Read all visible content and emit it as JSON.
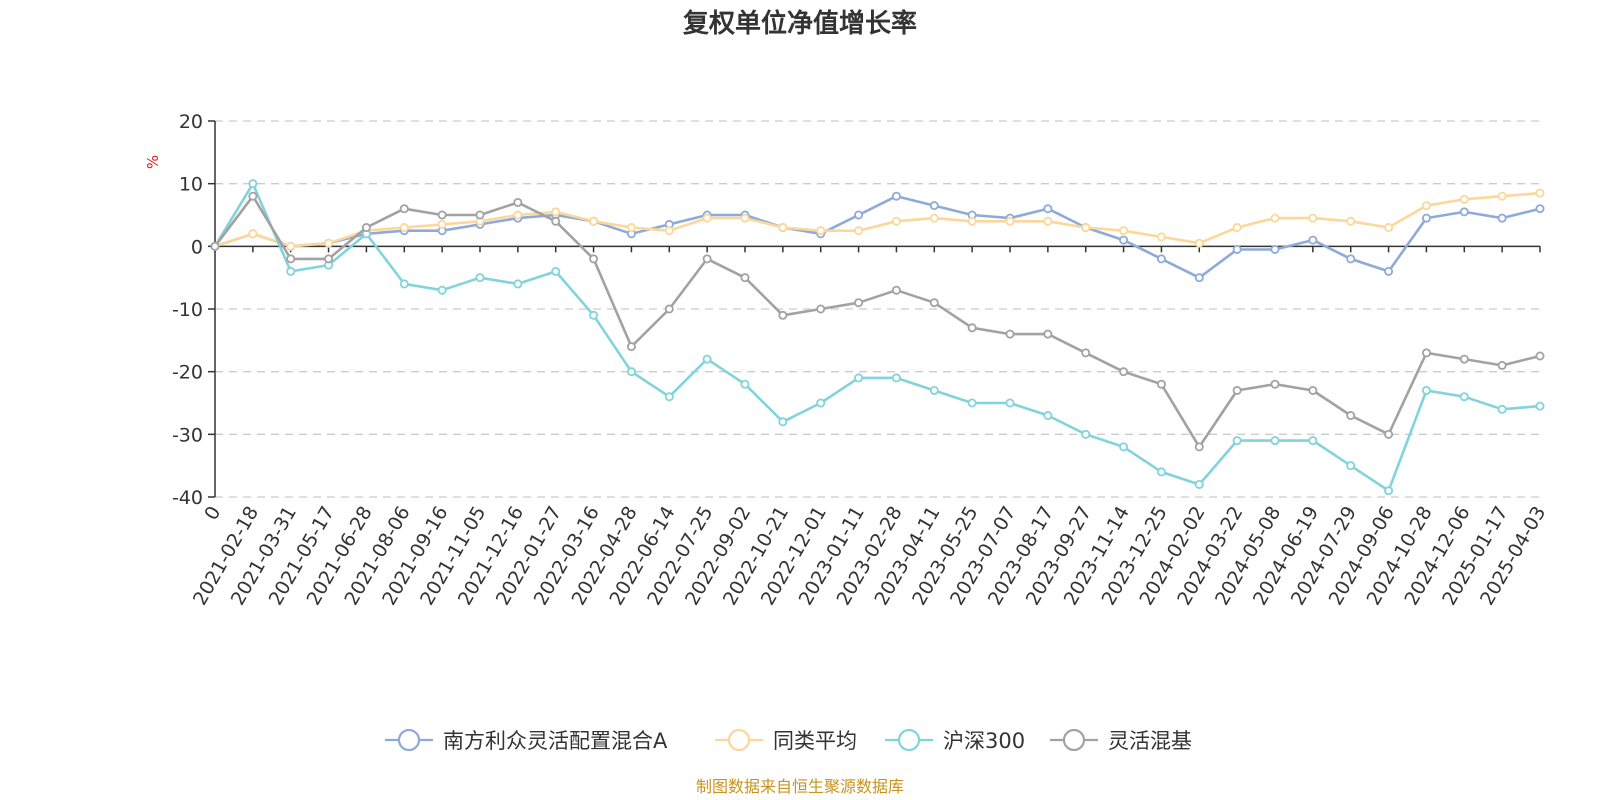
{
  "chart_data": {
    "type": "line",
    "title": "复权单位净值增长率",
    "ylabel": "%",
    "ylim": [
      -40,
      20
    ],
    "yticks": [
      -40,
      -30,
      -20,
      -10,
      0,
      10,
      20
    ],
    "grid": true,
    "legend_position": "bottom-center",
    "source": "制图数据来自恒生聚源数据库",
    "x_tick_labels": [
      "0",
      "2021-02-18",
      "2021-03-31",
      "2021-05-17",
      "2021-06-28",
      "2021-08-06",
      "2021-09-16",
      "2021-11-05",
      "2021-12-16",
      "2022-01-27",
      "2022-03-16",
      "2022-04-28",
      "2022-06-14",
      "2022-07-25",
      "2022-09-02",
      "2022-10-21",
      "2022-12-01",
      "2023-01-11",
      "2023-02-28",
      "2023-04-11",
      "2023-05-25",
      "2023-07-07",
      "2023-08-17",
      "2023-09-27",
      "2023-11-14",
      "2023-12-25",
      "2024-02-02",
      "2024-03-22",
      "2024-05-08",
      "2024-06-19",
      "2024-07-29",
      "2024-09-06",
      "2024-10-28",
      "2024-12-06",
      "2025-01-17",
      "2025-04-03"
    ],
    "x": [
      "0",
      "2021-02-18",
      "2021-03-31",
      "2021-05-17",
      "2021-06-28",
      "2021-08-06",
      "2021-09-16",
      "2021-11-05",
      "2021-12-16",
      "2022-01-27",
      "2022-03-16",
      "2022-04-28",
      "2022-06-14",
      "2022-07-25",
      "2022-09-02",
      "2022-10-21",
      "2022-12-01",
      "2023-01-11",
      "2023-02-28",
      "2023-04-11",
      "2023-05-25",
      "2023-07-07",
      "2023-08-17",
      "2023-09-27",
      "2023-11-14",
      "2023-12-25",
      "2024-02-02",
      "2024-03-22",
      "2024-05-08",
      "2024-06-19",
      "2024-07-29",
      "2024-09-06",
      "2024-10-28",
      "2024-12-06",
      "2025-01-17",
      "2025-04-03"
    ],
    "series": [
      {
        "name": "南方利众灵活配置混合A",
        "color": "#8eaad9",
        "values": [
          0,
          2,
          0,
          0.5,
          2,
          2.5,
          2.5,
          3.5,
          4.5,
          5,
          4,
          2,
          3.5,
          5,
          5,
          3,
          2,
          5,
          8,
          6.5,
          5,
          4.5,
          6,
          3,
          1,
          -2,
          -5,
          -0.5,
          -0.5,
          1,
          -2,
          -4,
          4.5,
          5.5,
          4.5,
          6
        ]
      },
      {
        "name": "同类平均",
        "color": "#fcd79a",
        "values": [
          0,
          2,
          0,
          0.5,
          2.5,
          3,
          3.5,
          4,
          5,
          5.5,
          4,
          3,
          2.5,
          4.5,
          4.5,
          3,
          2.5,
          2.5,
          4,
          4.5,
          4,
          4,
          4,
          3,
          2.5,
          1.5,
          0.5,
          3,
          4.5,
          4.5,
          4,
          3,
          6.5,
          7.5,
          8,
          8.5
        ]
      },
      {
        "name": "沪深300",
        "color": "#81d3dc",
        "values": [
          0,
          10,
          -4,
          -3,
          2,
          -6,
          -7,
          -5,
          -6,
          -4,
          -11,
          -20,
          -24,
          -18,
          -22,
          -28,
          -25,
          -21,
          -21,
          -23,
          -25,
          -25,
          -27,
          -30,
          -32,
          -36,
          -38,
          -31,
          -31,
          -31,
          -35,
          -39,
          -23,
          -24,
          -26,
          -25.5
        ]
      },
      {
        "name": "灵活混基",
        "color": "#a2a2a2",
        "values": [
          0,
          8,
          -2,
          -2,
          3,
          6,
          5,
          5,
          7,
          4,
          -2,
          -16,
          -10,
          -2,
          -5,
          -11,
          -10,
          -9,
          -7,
          -9,
          -13,
          -14,
          -14,
          -17,
          -20,
          -22,
          -32,
          -23,
          -22,
          -23,
          -27,
          -30,
          -17,
          -18,
          -19,
          -17.5
        ]
      }
    ]
  }
}
